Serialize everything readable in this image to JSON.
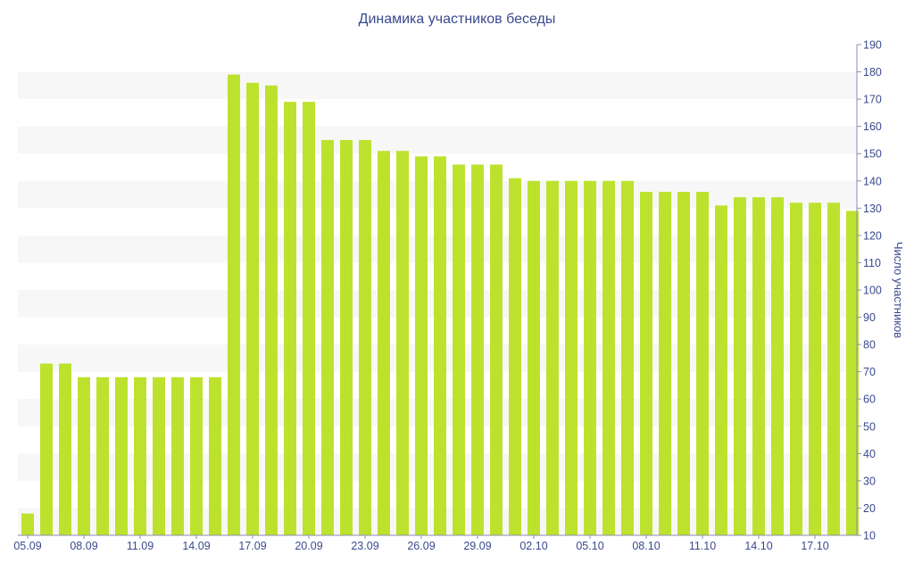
{
  "chart_data": {
    "type": "bar",
    "title": "Динамика участников беседы",
    "xlabel": "",
    "ylabel": "Число участников",
    "ylim": [
      10,
      190
    ],
    "y_ticks": [
      10,
      20,
      30,
      40,
      50,
      60,
      70,
      80,
      90,
      100,
      110,
      120,
      130,
      140,
      150,
      160,
      170,
      180,
      190
    ],
    "y_axis_side": "right",
    "grid": "alternating horizontal bands",
    "bar_color": "#bde22e",
    "band_color": "#f7f7f7",
    "text_color": "#3a4a8e",
    "categories": [
      "05.09",
      "06.09",
      "07.09",
      "08.09",
      "09.09",
      "10.09",
      "11.09",
      "12.09",
      "13.09",
      "14.09",
      "15.09",
      "16.09",
      "17.09",
      "18.09",
      "19.09",
      "20.09",
      "21.09",
      "22.09",
      "23.09",
      "24.09",
      "25.09",
      "26.09",
      "27.09",
      "28.09",
      "29.09",
      "30.09",
      "01.10",
      "02.10",
      "03.10",
      "04.10",
      "05.10",
      "06.10",
      "07.10",
      "08.10",
      "09.10",
      "10.10",
      "11.10",
      "12.10",
      "13.10",
      "14.10",
      "15.10",
      "16.10",
      "17.10",
      "18.10",
      "19.10"
    ],
    "x_tick_labels": [
      "05.09",
      "08.09",
      "11.09",
      "14.09",
      "17.09",
      "20.09",
      "23.09",
      "26.09",
      "29.09",
      "02.10",
      "05.10",
      "08.10",
      "11.10",
      "14.10",
      "17.10"
    ],
    "values": [
      18,
      73,
      73,
      68,
      68,
      68,
      68,
      68,
      68,
      68,
      68,
      179,
      176,
      175,
      169,
      169,
      155,
      155,
      155,
      151,
      151,
      149,
      149,
      146,
      146,
      146,
      141,
      140,
      140,
      140,
      140,
      140,
      140,
      136,
      136,
      136,
      136,
      131,
      134,
      134,
      134,
      132,
      132,
      132,
      129
    ]
  }
}
